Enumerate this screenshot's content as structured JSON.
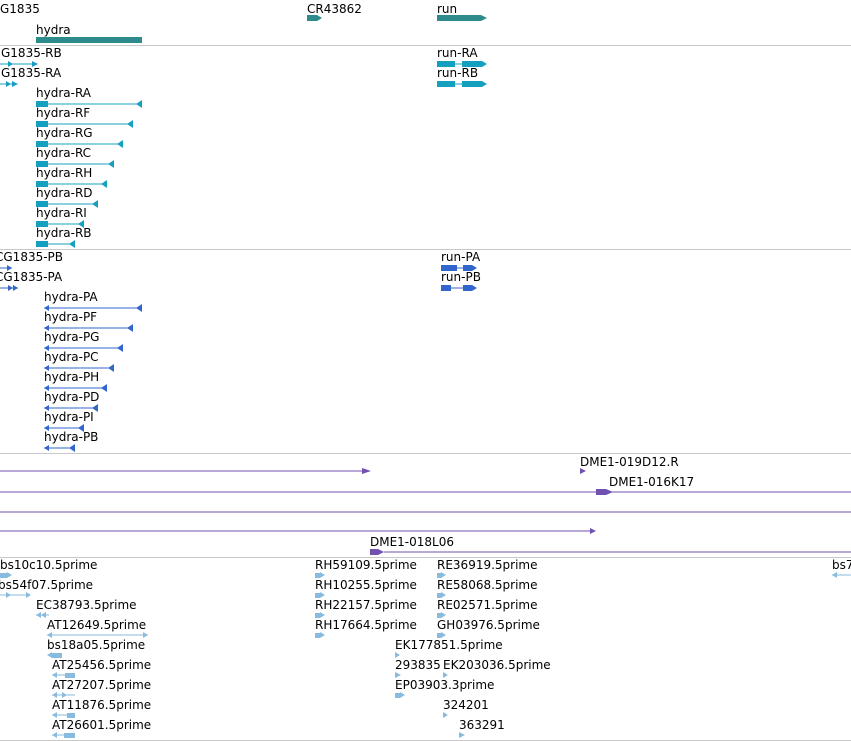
{
  "colors": {
    "genes": "#2e8b8b",
    "transcripts": "#16a0c0",
    "proteins": "#3366cc",
    "clones": "#7050b0",
    "ests": "#88bbdd",
    "separator": "#c8c8c8"
  },
  "gene_track": {
    "labels": {
      "cg1835": "G1835",
      "cr43862": "CR43862",
      "run": "run",
      "hydra": "hydra"
    }
  },
  "transcript_track": {
    "labels": [
      "G1835-RB",
      "G1835-RA",
      "hydra-RA",
      "hydra-RF",
      "hydra-RG",
      "hydra-RC",
      "hydra-RH",
      "hydra-RD",
      "hydra-RI",
      "hydra-RB",
      "run-RA",
      "run-RB"
    ]
  },
  "protein_track": {
    "labels": [
      "CG1835-PB",
      "CG1835-PA",
      "hydra-PA",
      "hydra-PF",
      "hydra-PG",
      "hydra-PC",
      "hydra-PH",
      "hydra-PD",
      "hydra-PI",
      "hydra-PB",
      "run-PA",
      "run-PB"
    ]
  },
  "clone_track": {
    "labels": [
      "DME1-019D12.R",
      "DME1-016K17",
      "DME1-018L06"
    ]
  },
  "est_track": {
    "labels": [
      "bs10c10.5prime",
      "bs54f07.5prime",
      "EC38793.5prime",
      "AT12649.5prime",
      "bs18a05.5prime",
      "AT25456.5prime",
      "AT27207.5prime",
      "AT11876.5prime",
      "AT26601.5prime",
      "RH59109.5prime",
      "RH10255.5prime",
      "RH22157.5prime",
      "RH17664.5prime",
      "RE36919.5prime",
      "RE58068.5prime",
      "RE02571.5prime",
      "GH03976.5prime",
      "EK177851.5prime",
      "293835",
      "EK203036.5prime",
      "EP03903.3prime",
      "324201",
      "363291",
      "bs7"
    ]
  }
}
